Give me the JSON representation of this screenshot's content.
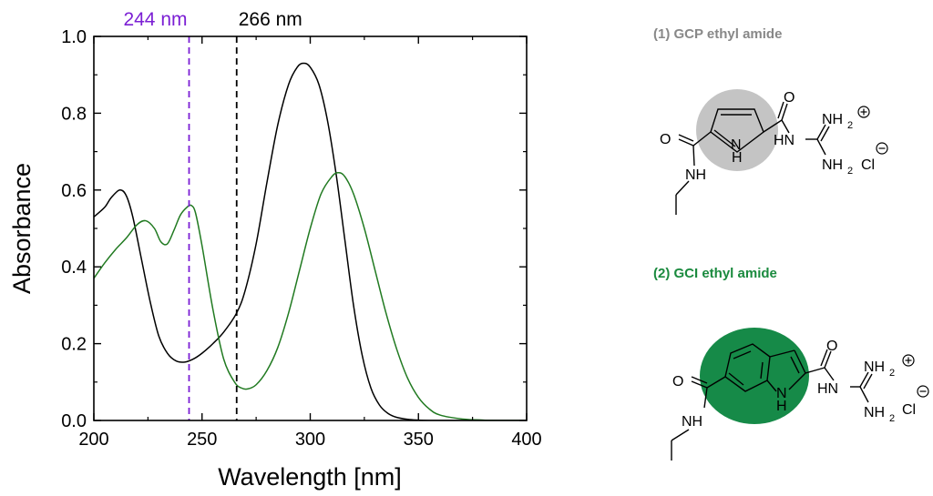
{
  "chart_data": {
    "type": "line",
    "xlabel": "Wavelength [nm]",
    "ylabel": "Absorbance",
    "xlim": [
      200,
      400
    ],
    "ylim": [
      0.0,
      1.0
    ],
    "xticks": [
      200,
      250,
      300,
      350,
      400
    ],
    "yticks": [
      0.0,
      0.2,
      0.4,
      0.6,
      0.8,
      1.0
    ],
    "xtick_labels": [
      "200",
      "250",
      "300",
      "350",
      "400"
    ],
    "ytick_labels": [
      "0.0",
      "0.2",
      "0.4",
      "0.6",
      "0.8",
      "1.0"
    ],
    "grid": false,
    "markers": [
      {
        "x": 244,
        "label": "244 nm",
        "color": "#7b1fd4",
        "style": "dashed"
      },
      {
        "x": 266,
        "label": "266 nm",
        "color": "#000000",
        "style": "dashed"
      }
    ],
    "series": [
      {
        "name": "(1) GCP ethyl amide",
        "color": "#000000",
        "x": [
          200,
          205,
          208,
          212,
          215,
          218,
          222,
          226,
          230,
          234,
          238,
          242,
          246,
          250,
          255,
          260,
          266,
          270,
          275,
          280,
          285,
          290,
          294,
          297,
          300,
          304,
          308,
          312,
          316,
          320,
          324,
          328,
          332,
          336,
          340,
          345,
          350,
          355,
          360,
          370,
          380,
          400
        ],
        "values": [
          0.53,
          0.555,
          0.58,
          0.6,
          0.585,
          0.53,
          0.42,
          0.31,
          0.22,
          0.175,
          0.155,
          0.152,
          0.16,
          0.175,
          0.2,
          0.23,
          0.28,
          0.34,
          0.46,
          0.62,
          0.77,
          0.875,
          0.92,
          0.93,
          0.92,
          0.875,
          0.78,
          0.64,
          0.47,
          0.3,
          0.17,
          0.085,
          0.04,
          0.018,
          0.008,
          0.003,
          0.001,
          0.0,
          0.0,
          0.0,
          0.0,
          0.0
        ]
      },
      {
        "name": "(2) GCI ethyl amide",
        "color": "#217a21",
        "x": [
          200,
          205,
          210,
          215,
          220,
          224,
          228,
          231,
          234,
          237,
          240,
          243,
          245,
          247,
          250,
          255,
          260,
          265,
          268,
          271,
          275,
          280,
          285,
          290,
          295,
          300,
          305,
          310,
          313,
          316,
          320,
          325,
          330,
          335,
          340,
          345,
          350,
          355,
          360,
          370,
          380,
          390,
          400
        ],
        "values": [
          0.37,
          0.41,
          0.445,
          0.475,
          0.51,
          0.52,
          0.5,
          0.465,
          0.46,
          0.495,
          0.535,
          0.555,
          0.56,
          0.54,
          0.455,
          0.29,
          0.16,
          0.1,
          0.085,
          0.082,
          0.093,
          0.13,
          0.19,
          0.28,
          0.39,
          0.5,
          0.59,
          0.635,
          0.645,
          0.635,
          0.59,
          0.5,
          0.39,
          0.28,
          0.185,
          0.11,
          0.06,
          0.03,
          0.014,
          0.004,
          0.001,
          0.0,
          0.0
        ]
      }
    ]
  },
  "compounds": [
    {
      "title": "(1) GCP ethyl amide",
      "title_color": "#888888",
      "highlight_color": "#c4c4c4",
      "atoms": {
        "o_amide": "O",
        "nh_amide": "NH",
        "o_acyl": "O",
        "hn_guan": "HN",
        "nh2_top": "NH",
        "nh2_bottom": "NH",
        "sub2_top": "2",
        "sub2_bottom": "2",
        "chloride": "Cl",
        "ring_n": "N",
        "ring_h": "H"
      }
    },
    {
      "title": "(2) GCI ethyl amide",
      "title_color": "#1a8a3e",
      "highlight_color": "#168a48",
      "atoms": {
        "o_amide": "O",
        "nh_amide": "NH",
        "o_acyl": "O",
        "hn_guan": "HN",
        "nh2_top": "NH",
        "nh2_bottom": "NH",
        "sub2_top": "2",
        "sub2_bottom": "2",
        "chloride": "Cl",
        "ring_n": "N",
        "ring_h": "H"
      }
    }
  ]
}
